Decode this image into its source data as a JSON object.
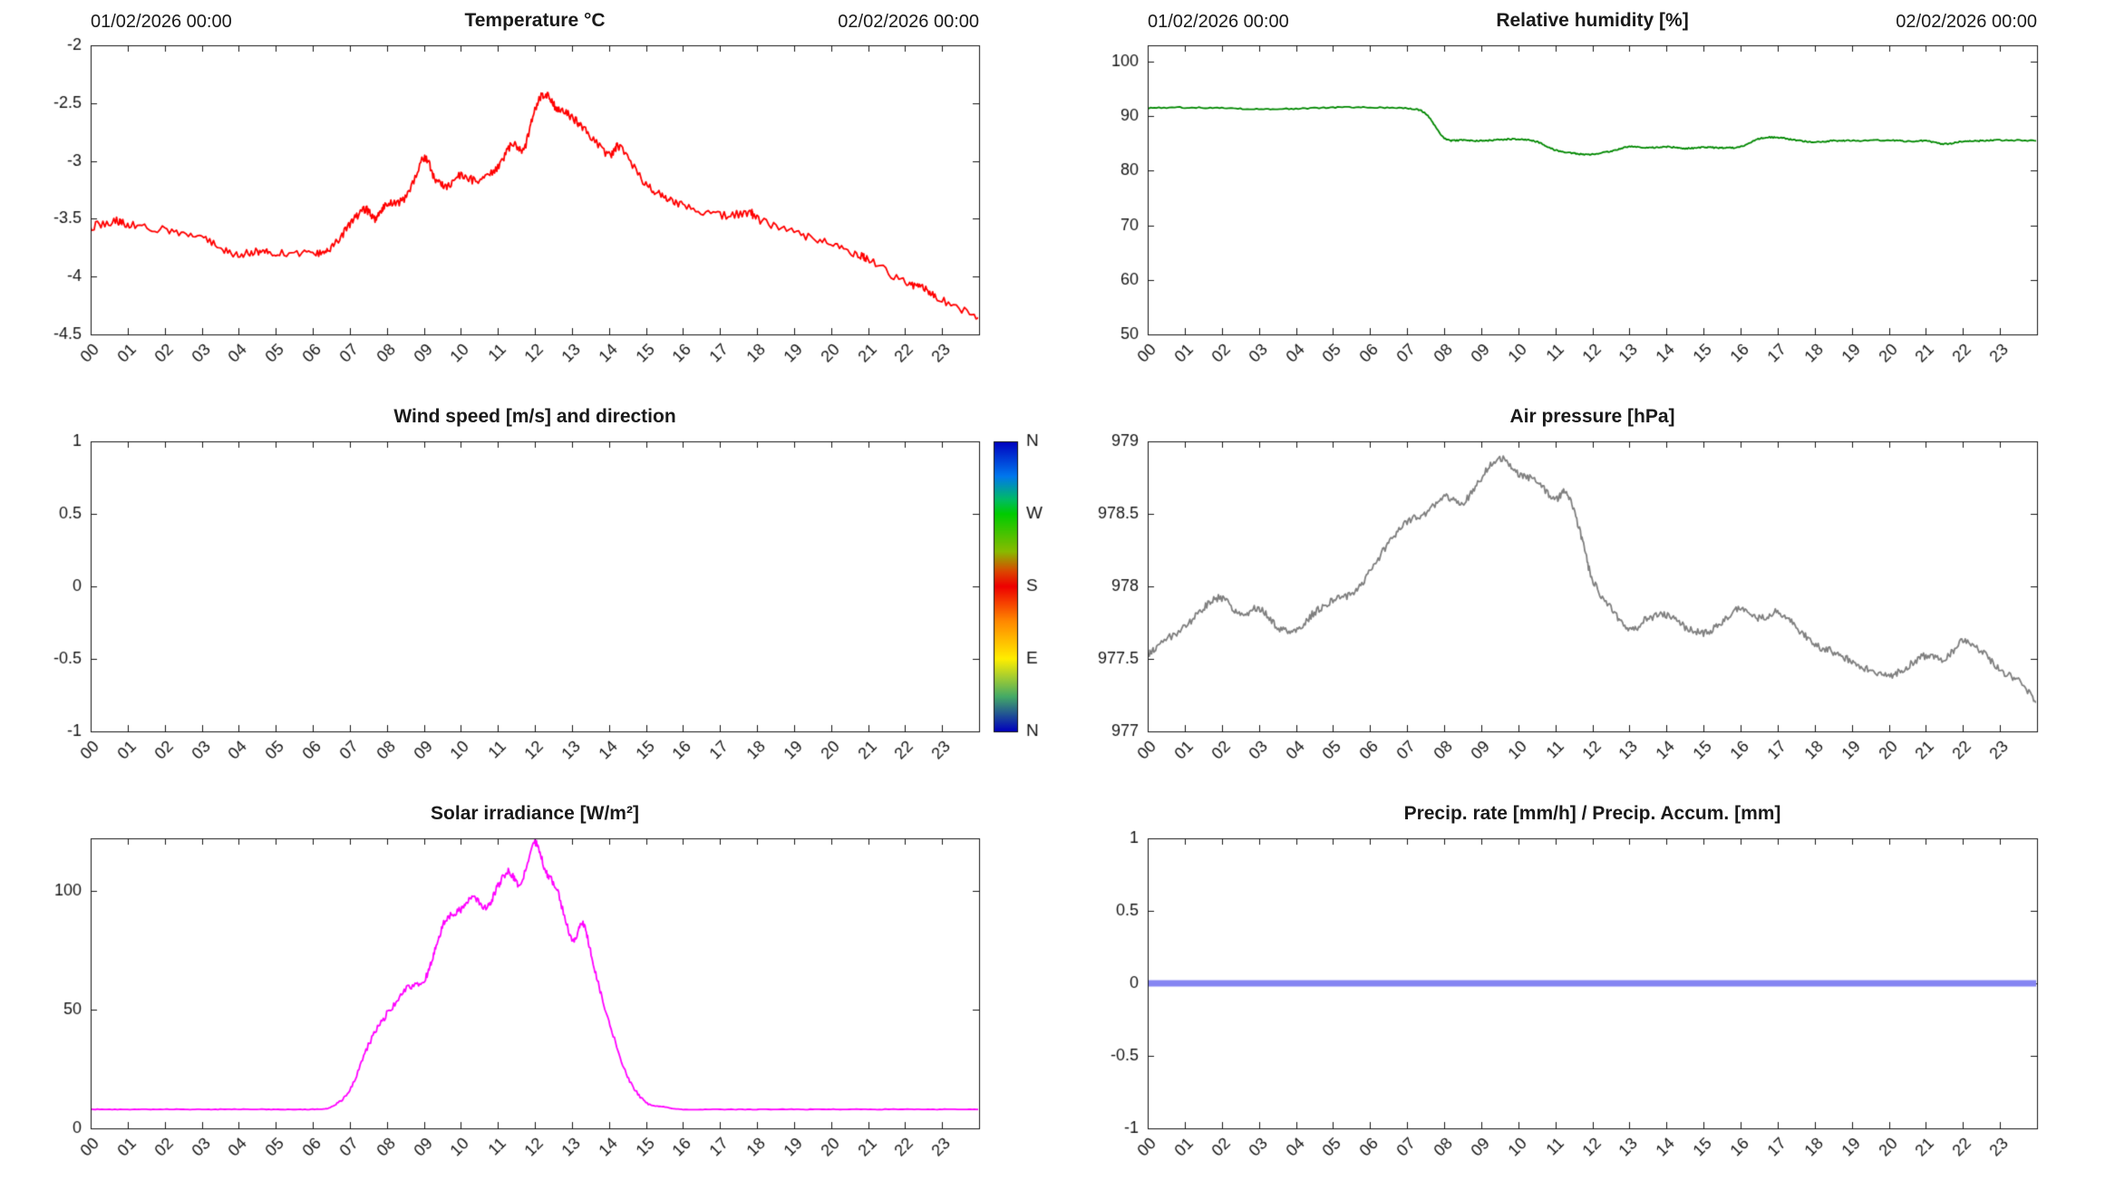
{
  "x_axis": {
    "lim": [
      0,
      24
    ],
    "ticks": [
      0,
      1,
      2,
      3,
      4,
      5,
      6,
      7,
      8,
      9,
      10,
      11,
      12,
      13,
      14,
      15,
      16,
      17,
      18,
      19,
      20,
      21,
      22,
      23
    ],
    "labels": [
      "00",
      "01",
      "02",
      "03",
      "04",
      "05",
      "06",
      "07",
      "08",
      "09",
      "10",
      "11",
      "12",
      "13",
      "14",
      "15",
      "16",
      "17",
      "18",
      "19",
      "20",
      "21",
      "22",
      "23"
    ]
  },
  "chart_data": [
    {
      "type": "line",
      "id": "temperature",
      "title": "Temperature °C",
      "date_left": "01/02/2026 00:00",
      "date_right": "02/02/2026 00:00",
      "color": "#ff0000",
      "line_width": 1.8,
      "noise": 0.035,
      "ylim": [
        -4.5,
        -2
      ],
      "yticks": [
        -4.5,
        -4,
        -3.5,
        -3,
        -2.5,
        -2
      ],
      "ytick_labels": [
        "-4.5",
        "-4",
        "-3.5",
        "-3",
        "-2.5",
        "-2"
      ],
      "x": [
        0,
        0.7,
        1,
        2,
        3,
        3.8,
        4.5,
        5,
        6,
        6.5,
        7,
        7.4,
        7.7,
        8,
        8.5,
        9,
        9.3,
        9.6,
        10,
        10.5,
        11,
        11.4,
        11.7,
        12,
        12.3,
        12.6,
        13,
        13.4,
        14,
        14.3,
        15,
        15.5,
        16,
        17,
        17.8,
        18,
        19,
        20,
        20.8,
        21,
        22,
        22.5,
        23,
        24
      ],
      "values": [
        -3.57,
        -3.52,
        -3.55,
        -3.6,
        -3.67,
        -3.8,
        -3.78,
        -3.8,
        -3.8,
        -3.75,
        -3.55,
        -3.42,
        -3.5,
        -3.38,
        -3.32,
        -2.98,
        -3.15,
        -3.22,
        -3.12,
        -3.18,
        -3.05,
        -2.85,
        -2.9,
        -2.55,
        -2.42,
        -2.55,
        -2.62,
        -2.75,
        -2.95,
        -2.88,
        -3.2,
        -3.3,
        -3.38,
        -3.47,
        -3.45,
        -3.5,
        -3.62,
        -3.72,
        -3.82,
        -3.85,
        -4.05,
        -4.1,
        -4.2,
        -4.35
      ]
    },
    {
      "type": "line",
      "id": "relative-humidity",
      "title": "Relative humidity [%]",
      "date_left": "01/02/2026 00:00",
      "date_right": "02/02/2026 00:00",
      "color": "#008800",
      "line_width": 1.8,
      "noise": 0.12,
      "ylim": [
        50,
        103
      ],
      "yticks": [
        50,
        60,
        70,
        80,
        90,
        100
      ],
      "ytick_labels": [
        "50",
        "60",
        "70",
        "80",
        "90",
        "100"
      ],
      "x": [
        0,
        1,
        2,
        3,
        4,
        5,
        6,
        7,
        7.5,
        8,
        8.5,
        9,
        9.5,
        10,
        10.5,
        11,
        11.5,
        12,
        12.5,
        13,
        13.5,
        14,
        14.5,
        15,
        15.5,
        16,
        16.5,
        17,
        17.5,
        18,
        18.5,
        19,
        20,
        20.5,
        21,
        21.5,
        22,
        22.5,
        23,
        24
      ],
      "values": [
        91.5,
        91.6,
        91.5,
        91.3,
        91.4,
        91.6,
        91.6,
        91.4,
        90.5,
        86.0,
        85.6,
        85.5,
        85.7,
        85.8,
        85.3,
        83.8,
        83.2,
        83.0,
        83.6,
        84.4,
        84.2,
        84.4,
        84.1,
        84.3,
        84.2,
        84.4,
        85.9,
        86.1,
        85.6,
        85.3,
        85.5,
        85.5,
        85.6,
        85.4,
        85.5,
        84.9,
        85.4,
        85.5,
        85.6,
        85.5
      ]
    },
    {
      "type": "empty",
      "id": "wind",
      "title": "Wind speed [m/s] and direction",
      "color": "#0000bf",
      "line_width": 1.8,
      "noise": 0,
      "ylim": [
        -1,
        1
      ],
      "yticks": [
        -1,
        -0.5,
        0,
        0.5,
        1
      ],
      "ytick_labels": [
        "-1",
        "-0.5",
        "0",
        "0.5",
        "1"
      ],
      "x": [],
      "values": [],
      "colorbar": {
        "labels": [
          "N",
          "W",
          "S",
          "E",
          "N"
        ],
        "stops": [
          {
            "pos": 0.0,
            "color": "#0000bf"
          },
          {
            "pos": 0.12,
            "color": "#0077ee"
          },
          {
            "pos": 0.2,
            "color": "#00bb66"
          },
          {
            "pos": 0.25,
            "color": "#00cc00"
          },
          {
            "pos": 0.38,
            "color": "#88bb00"
          },
          {
            "pos": 0.45,
            "color": "#dd4400"
          },
          {
            "pos": 0.5,
            "color": "#ee0000"
          },
          {
            "pos": 0.62,
            "color": "#ff8800"
          },
          {
            "pos": 0.75,
            "color": "#ffee00"
          },
          {
            "pos": 0.88,
            "color": "#44aa66"
          },
          {
            "pos": 1.0,
            "color": "#0000bf"
          }
        ]
      }
    },
    {
      "type": "line",
      "id": "air-pressure",
      "title": "Air pressure [hPa]",
      "color": "#7f7f7f",
      "line_width": 1.8,
      "noise": 0.025,
      "ylim": [
        977,
        979
      ],
      "yticks": [
        977,
        977.5,
        978,
        978.5,
        979
      ],
      "ytick_labels": [
        "977",
        "977.5",
        "978",
        "978.5",
        "979"
      ],
      "x": [
        0,
        0.3,
        1,
        1.5,
        2,
        2.5,
        3,
        3.5,
        4,
        4.5,
        5,
        5.5,
        6,
        6.5,
        7,
        7.5,
        8,
        8.5,
        9,
        9.5,
        10,
        10.5,
        11,
        11.3,
        11.7,
        12,
        12.5,
        13,
        13.5,
        14,
        14.5,
        15,
        15.5,
        16,
        16.5,
        17,
        17.5,
        18,
        18.5,
        19,
        19.5,
        20,
        20.5,
        21,
        21.5,
        22,
        22.5,
        23,
        23.5,
        24
      ],
      "values": [
        977.52,
        977.6,
        977.72,
        977.85,
        977.92,
        977.8,
        977.85,
        977.72,
        977.7,
        977.82,
        977.9,
        977.95,
        978.1,
        978.3,
        978.45,
        978.5,
        978.62,
        978.58,
        978.75,
        978.88,
        978.78,
        978.72,
        978.6,
        978.65,
        978.35,
        978.05,
        977.85,
        977.7,
        977.78,
        977.8,
        977.72,
        977.68,
        977.75,
        977.85,
        977.78,
        977.82,
        977.72,
        977.6,
        977.55,
        977.48,
        977.42,
        977.38,
        977.45,
        977.52,
        977.5,
        977.62,
        977.55,
        977.42,
        977.35,
        977.2
      ]
    },
    {
      "type": "line",
      "id": "solar-irradiance",
      "title": "Solar irradiance [W/m²]",
      "color": "#ff00ff",
      "line_width": 1.8,
      "noise": 1.5,
      "baseline": 8,
      "ylim": [
        0,
        122
      ],
      "yticks": [
        0,
        50,
        100
      ],
      "ytick_labels": [
        "0",
        "50",
        "100"
      ],
      "x": [
        0,
        1,
        2,
        3,
        4,
        5,
        6,
        6.5,
        7,
        7.5,
        8,
        8.5,
        9,
        9.3,
        9.6,
        10,
        10.3,
        10.7,
        11,
        11.3,
        11.6,
        12,
        12.3,
        12.6,
        13,
        13.3,
        13.6,
        14,
        14.5,
        15,
        15.5,
        16,
        17,
        18,
        19,
        20,
        21,
        22,
        23,
        24
      ],
      "values": [
        8,
        8,
        8,
        8,
        8,
        8,
        8,
        9,
        16,
        35,
        48,
        58,
        62,
        75,
        88,
        92,
        97,
        93,
        102,
        108,
        103,
        120,
        108,
        100,
        80,
        86,
        68,
        45,
        22,
        11,
        9,
        8,
        8,
        8,
        8,
        8,
        8,
        8,
        8,
        8
      ]
    },
    {
      "type": "line",
      "id": "precipitation",
      "title": "Precip. rate [mm/h] / Precip. Accum. [mm]",
      "color": "#8585f2",
      "line_width": 7,
      "noise": 0,
      "ylim": [
        -1,
        1
      ],
      "yticks": [
        -1,
        -0.5,
        0,
        0.5,
        1
      ],
      "ytick_labels": [
        "-1",
        "-0.5",
        "0",
        "0.5",
        "1"
      ],
      "x": [
        0,
        24
      ],
      "values": [
        0,
        0
      ]
    }
  ]
}
